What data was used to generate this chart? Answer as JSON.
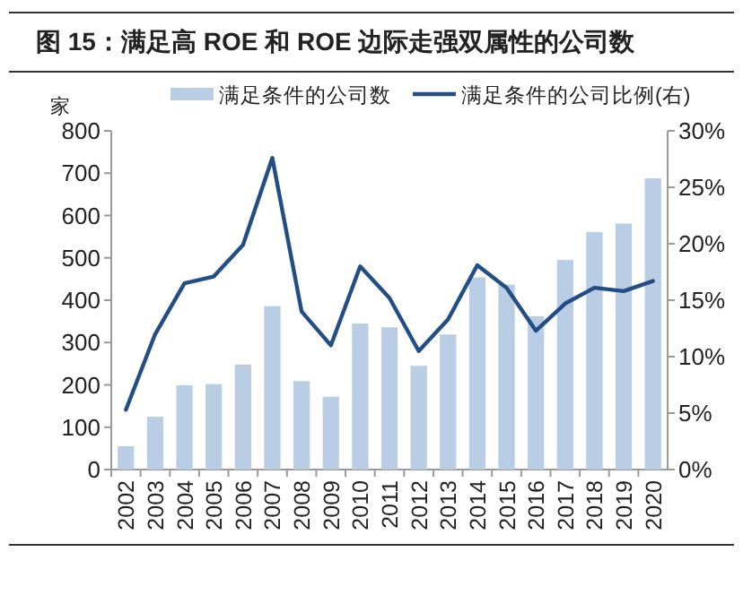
{
  "chart_data": {
    "type": "bar",
    "title": "图 15：满足高 ROE 和 ROE 边际走强双属性的公司数",
    "ylabel": "家",
    "categories": [
      "2002",
      "2003",
      "2004",
      "2005",
      "2006",
      "2007",
      "2008",
      "2009",
      "2010",
      "2011",
      "2012",
      "2013",
      "2014",
      "2015",
      "2016",
      "2017",
      "2018",
      "2019",
      "2020"
    ],
    "series": [
      {
        "name": "满足条件的公司数",
        "color": "#b9cde5",
        "values": [
          55,
          125,
          199,
          202,
          248,
          386,
          209,
          172,
          345,
          336,
          245,
          319,
          454,
          437,
          362,
          495,
          561,
          581,
          688
        ]
      },
      {
        "name": "满足条件的公司比例(右)",
        "type": "line",
        "axis": "y2",
        "color": "#234e85",
        "values": [
          5.3,
          12.0,
          16.5,
          17.1,
          19.9,
          27.6,
          14.0,
          11.0,
          18.0,
          15.2,
          10.5,
          13.3,
          18.1,
          16.1,
          12.3,
          14.7,
          16.1,
          15.8,
          16.7
        ]
      }
    ],
    "ylim": [
      0,
      800
    ],
    "yticks": [
      0,
      100,
      200,
      300,
      400,
      500,
      600,
      700,
      800
    ],
    "y2lim": [
      0,
      30
    ],
    "y2ticks": [
      {
        "value": 0,
        "label": "0%"
      },
      {
        "value": 5,
        "label": "5%"
      },
      {
        "value": 10,
        "label": "10%"
      },
      {
        "value": 15,
        "label": "15%"
      },
      {
        "value": 20,
        "label": "20%"
      },
      {
        "value": 25,
        "label": "25%"
      },
      {
        "value": 30,
        "label": "30%"
      }
    ],
    "grid": false,
    "legend": "top",
    "marker": "none",
    "line_style": "solid"
  }
}
